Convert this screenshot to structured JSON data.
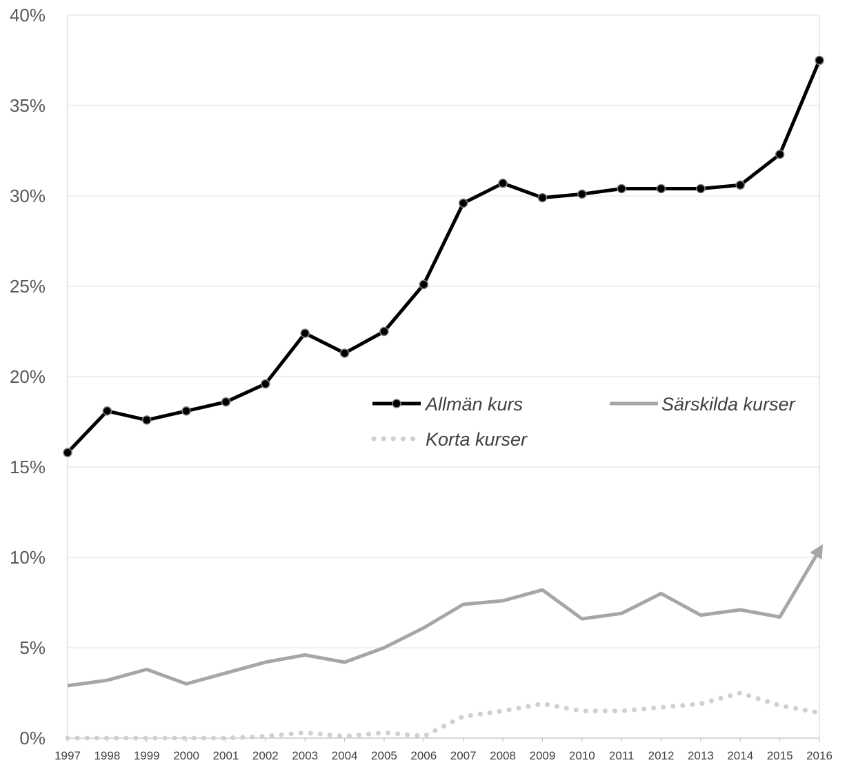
{
  "chart_data": {
    "type": "line",
    "title": "",
    "xlabel": "",
    "ylabel": "",
    "categories": [
      "1997",
      "1998",
      "1999",
      "2000",
      "2001",
      "2002",
      "2003",
      "2004",
      "2005",
      "2006",
      "2007",
      "2008",
      "2009",
      "2010",
      "2011",
      "2012",
      "2013",
      "2014",
      "2015",
      "2016"
    ],
    "yticks": [
      "0%",
      "5%",
      "10%",
      "15%",
      "20%",
      "25%",
      "30%",
      "35%",
      "40%"
    ],
    "ylim": [
      0,
      40
    ],
    "grid": true,
    "legend_position": "center-right",
    "series": [
      {
        "name": "Allmän kurs",
        "style": "solid-markers",
        "color": "#000000",
        "values": [
          15.8,
          18.1,
          17.6,
          18.1,
          18.6,
          19.6,
          22.4,
          21.3,
          22.5,
          25.1,
          29.6,
          30.7,
          29.9,
          30.1,
          30.4,
          30.4,
          30.4,
          30.6,
          32.3,
          37.5
        ]
      },
      {
        "name": "Särskilda kurser",
        "style": "solid-arrow",
        "color": "#a6a6a6",
        "values": [
          2.9,
          3.2,
          3.8,
          3.0,
          3.6,
          4.2,
          4.6,
          4.2,
          5.0,
          6.1,
          7.4,
          7.6,
          8.2,
          6.6,
          6.9,
          8.0,
          6.8,
          7.1,
          6.7,
          10.4
        ]
      },
      {
        "name": "Korta kurser",
        "style": "dotted",
        "color": "#d0d0d0",
        "values": [
          0.0,
          0.0,
          0.0,
          0.0,
          0.0,
          0.1,
          0.3,
          0.1,
          0.3,
          0.1,
          1.2,
          1.5,
          1.9,
          1.5,
          1.5,
          1.7,
          1.9,
          2.5,
          1.8,
          1.4
        ]
      }
    ]
  }
}
